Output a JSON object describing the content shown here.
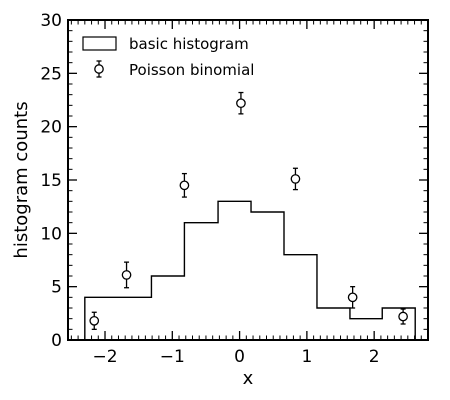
{
  "chart_data": {
    "type": "histogram",
    "xlabel": "x",
    "ylabel": "histogram counts",
    "xlim": [
      -2.55,
      2.8
    ],
    "ylim": [
      0,
      30
    ],
    "x_ticks": [
      -2,
      -1,
      0,
      1,
      2
    ],
    "x_tick_labels": [
      "−2",
      "−1",
      "0",
      "1",
      "2"
    ],
    "y_ticks": [
      0,
      5,
      10,
      15,
      20,
      25,
      30
    ],
    "y_tick_labels": [
      "0",
      "5",
      "10",
      "15",
      "20",
      "25",
      "30"
    ],
    "ticks_direction": "in",
    "minor_ticks": true,
    "legend_position": "upper-left",
    "series": [
      {
        "name": "basic histogram",
        "type": "step",
        "bin_edges": [
          -2.3,
          -1.31,
          -0.82,
          -0.32,
          0.17,
          0.66,
          1.15,
          1.64,
          2.12,
          2.61
        ],
        "counts": [
          4,
          6,
          11,
          13,
          12,
          8,
          3,
          2,
          3
        ],
        "color": "#000000"
      },
      {
        "name": "Poisson binomial",
        "type": "errorbar",
        "marker": "open-circle",
        "x": [
          -2.16,
          -1.68,
          -0.82,
          0.02,
          0.83,
          1.68,
          2.43
        ],
        "y": [
          1.8,
          6.1,
          14.5,
          22.2,
          15.1,
          4.0,
          2.2
        ],
        "yerr": [
          0.8,
          1.2,
          1.1,
          1.0,
          1.0,
          1.0,
          0.7
        ],
        "color": "#000000"
      }
    ]
  }
}
